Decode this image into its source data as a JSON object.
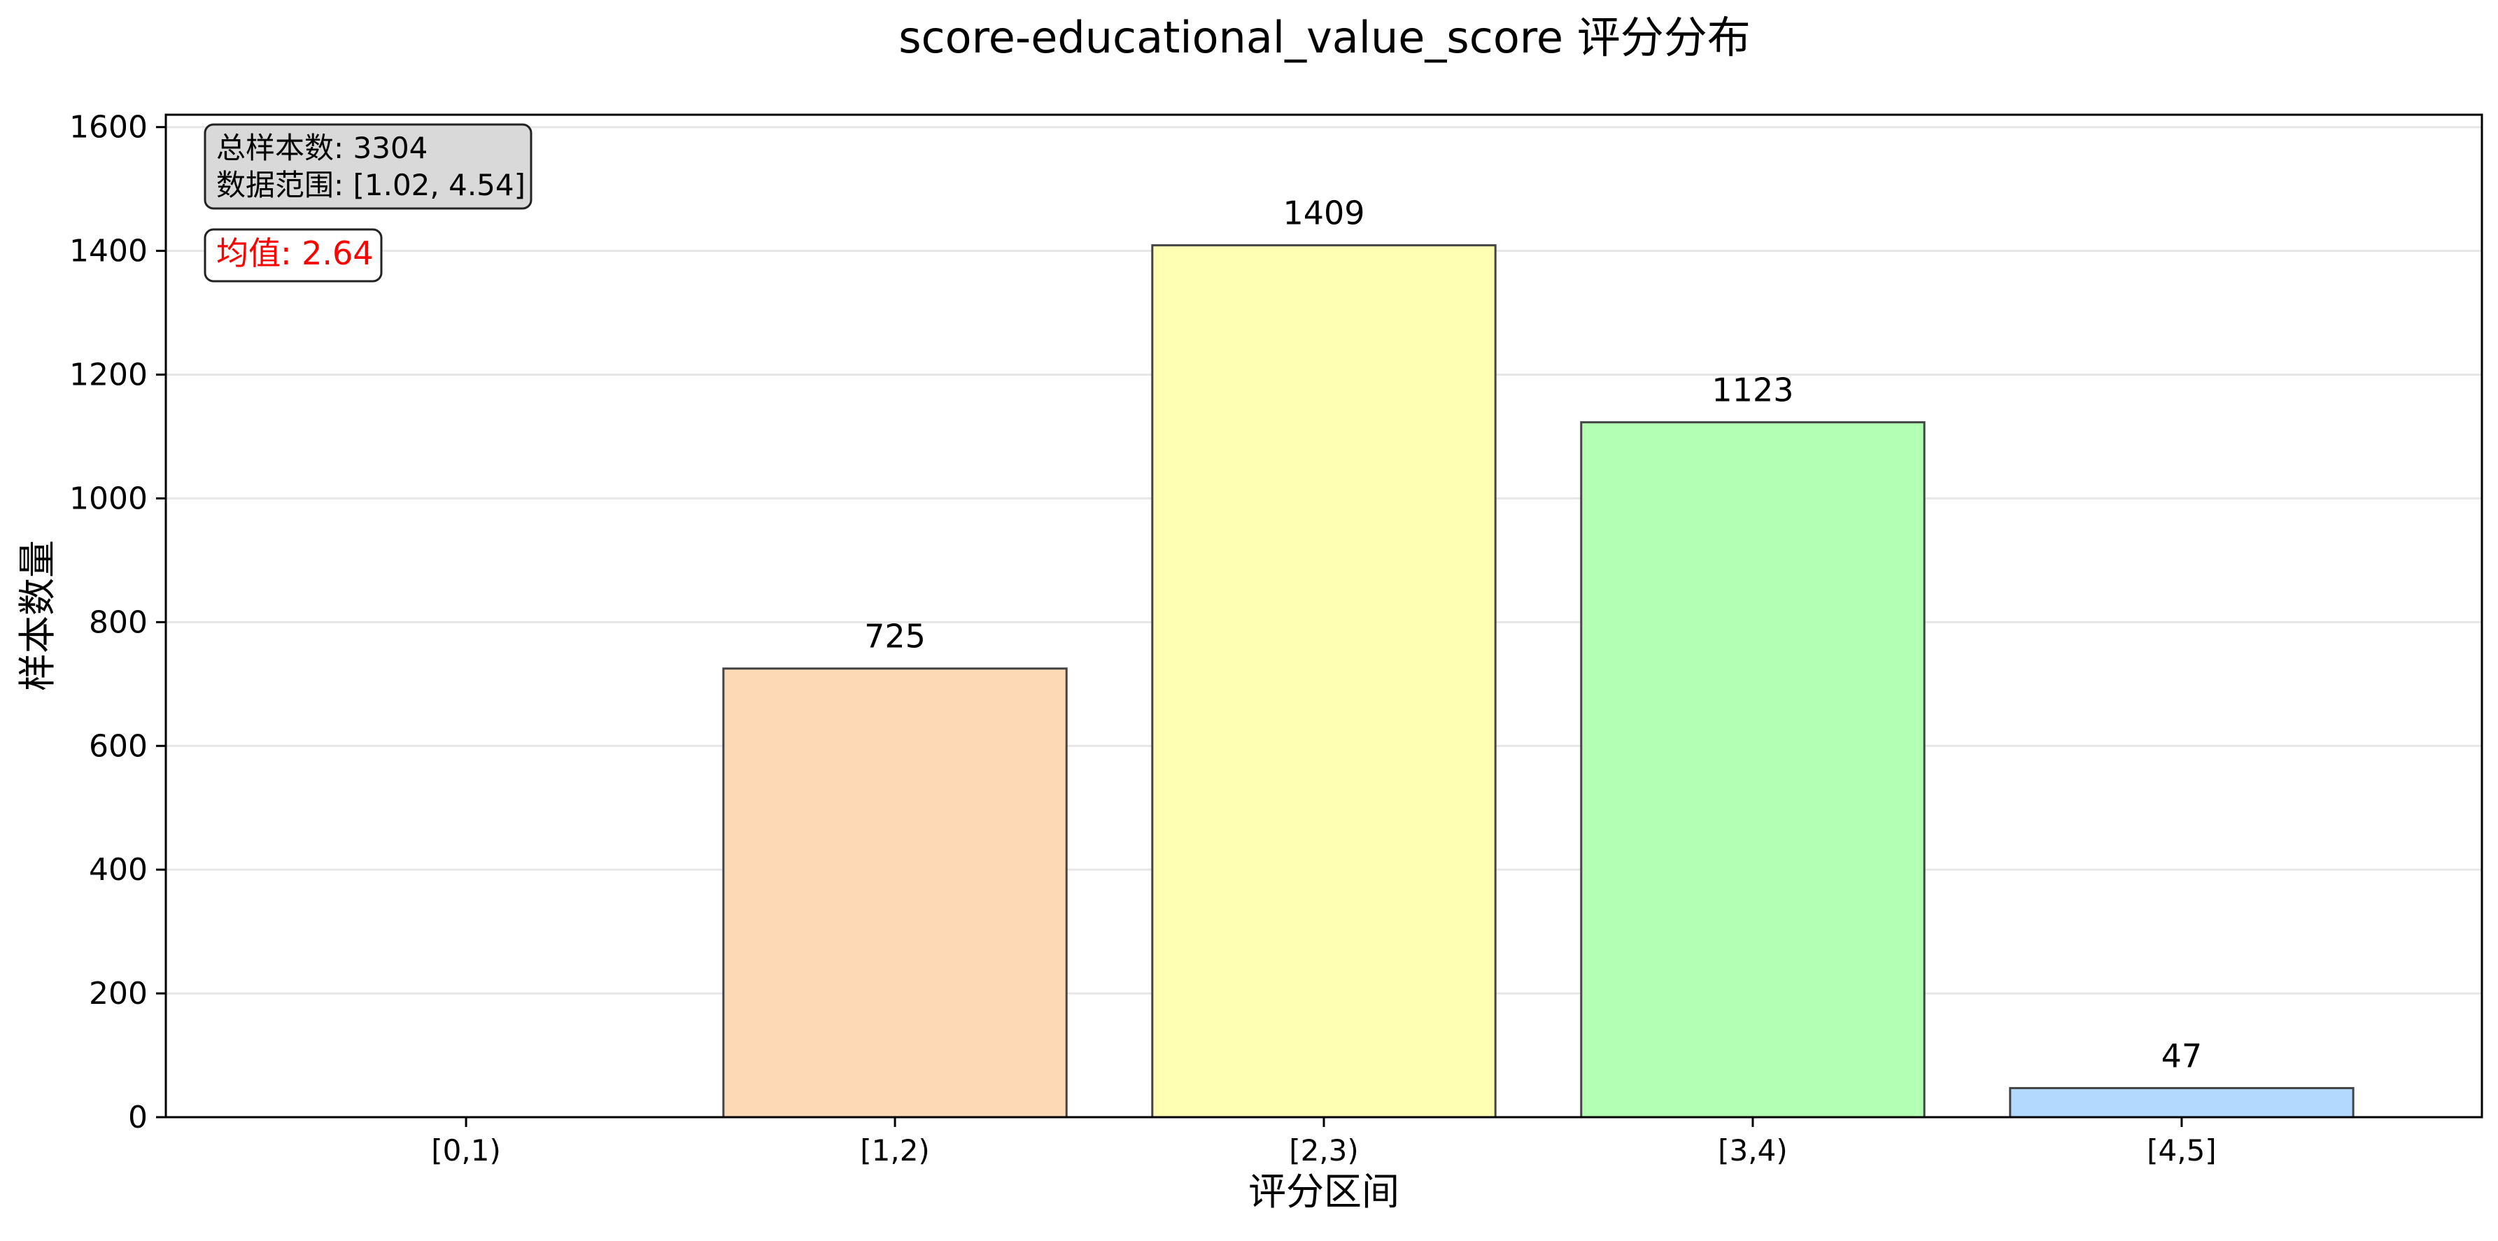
{
  "chart_data": {
    "type": "bar",
    "title": "score-educational_value_score 评分分布",
    "xlabel": "评分区间",
    "ylabel": "样本数量",
    "categories": [
      "[0,1)",
      "[1,2)",
      "[2,3)",
      "[3,4)",
      "[4,5]"
    ],
    "values": [
      0,
      725,
      1409,
      1123,
      47
    ],
    "bar_colors": [
      "#ffb3b3",
      "#fdd9b5",
      "#ffffb3",
      "#b3ffb3",
      "#b3d9ff"
    ],
    "bar_edge_color": "#444444",
    "ylim": [
      0,
      1620
    ],
    "yticks": [
      0,
      200,
      400,
      600,
      800,
      1000,
      1200,
      1400,
      1600
    ],
    "grid": "horizontal",
    "info_box": {
      "line1": "总样本数: 3304",
      "line2": "数据范围: [1.02, 4.54]",
      "background": "#d9d9d9"
    },
    "mean_box": {
      "text": "均值: 2.64",
      "color": "#ff0000"
    }
  }
}
